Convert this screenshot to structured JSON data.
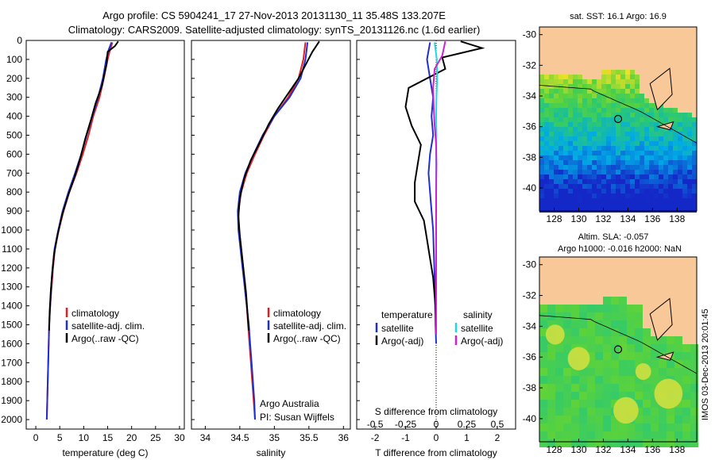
{
  "header": {
    "line1": "Argo profile: CS 5904241_17 27-Nov-2013 20131130_11 35.48S 133.207E",
    "line2": "Climatology: CARS2009. Satellite-adjusted climatology: synTS_20131126.nc (1.6d earlier)"
  },
  "chart_data": [
    {
      "type": "line",
      "xlabel": "temperature (deg C)",
      "ylabel": "",
      "xlim": [
        -2,
        31
      ],
      "ylim": [
        2050,
        0
      ],
      "xticks": [
        0,
        5,
        10,
        15,
        20,
        25,
        30
      ],
      "yticks": [
        0,
        100,
        200,
        300,
        400,
        500,
        600,
        700,
        800,
        900,
        1000,
        1100,
        1200,
        1300,
        1400,
        1500,
        1600,
        1700,
        1800,
        1900,
        2000
      ],
      "legend": [
        "climatology",
        "satellite-adj. clim.",
        "Argo(..raw -QC)"
      ],
      "legend_position": "lower-middle",
      "series": [
        {
          "name": "climatology",
          "color": "#e02020",
          "points": [
            [
              16.0,
              10
            ],
            [
              15.5,
              50
            ],
            [
              15.0,
              100
            ],
            [
              14.2,
              200
            ],
            [
              13.3,
              300
            ],
            [
              12.0,
              400
            ],
            [
              11.0,
              500
            ],
            [
              9.8,
              600
            ],
            [
              8.5,
              700
            ],
            [
              7.0,
              800
            ],
            [
              5.8,
              900
            ],
            [
              4.8,
              1000
            ],
            [
              4.0,
              1100
            ],
            [
              3.6,
              1200
            ],
            [
              3.3,
              1300
            ],
            [
              3.0,
              1400
            ],
            [
              2.8,
              1500
            ],
            [
              2.7,
              1600
            ],
            [
              2.6,
              1700
            ],
            [
              2.5,
              1800
            ],
            [
              2.4,
              1900
            ],
            [
              2.3,
              2000
            ]
          ]
        },
        {
          "name": "satellite-adj. clim.",
          "color": "#2030d0",
          "points": [
            [
              15.8,
              10
            ],
            [
              15.2,
              50
            ],
            [
              14.7,
              100
            ],
            [
              14.0,
              200
            ],
            [
              13.0,
              300
            ],
            [
              11.8,
              400
            ],
            [
              10.6,
              500
            ],
            [
              9.5,
              600
            ],
            [
              8.2,
              700
            ],
            [
              6.8,
              800
            ],
            [
              5.6,
              900
            ],
            [
              4.7,
              1000
            ],
            [
              3.9,
              1100
            ],
            [
              3.5,
              1200
            ],
            [
              3.2,
              1300
            ],
            [
              3.0,
              1400
            ],
            [
              2.8,
              1500
            ],
            [
              2.7,
              1600
            ],
            [
              2.6,
              1700
            ],
            [
              2.5,
              1800
            ],
            [
              2.4,
              1900
            ],
            [
              2.3,
              2000
            ]
          ]
        },
        {
          "name": "Argo(..raw -QC)",
          "color": "#000000",
          "points": [
            [
              17.2,
              5
            ],
            [
              16.5,
              30
            ],
            [
              15.0,
              60
            ],
            [
              14.8,
              120
            ],
            [
              14.3,
              180
            ],
            [
              13.8,
              240
            ],
            [
              12.5,
              330
            ],
            [
              11.5,
              420
            ],
            [
              10.3,
              520
            ],
            [
              9.3,
              620
            ],
            [
              8.1,
              720
            ],
            [
              6.7,
              820
            ],
            [
              5.5,
              920
            ],
            [
              4.5,
              1030
            ],
            [
              3.8,
              1130
            ],
            [
              3.4,
              1230
            ],
            [
              3.1,
              1330
            ],
            [
              2.9,
              1430
            ],
            [
              2.8,
              1530
            ]
          ]
        }
      ]
    },
    {
      "type": "line",
      "xlabel": "salinity",
      "ylabel": "",
      "xlim": [
        33.8,
        36.1
      ],
      "ylim": [
        2050,
        0
      ],
      "xticks": [
        34,
        34.5,
        35,
        35.5,
        36
      ],
      "legend": [
        "climatology",
        "satellite-adj. clim.",
        "Argo(..raw -QC)"
      ],
      "legend_position": "lower-middle",
      "annotations": [
        "Argo Australia",
        "PI: Susan Wijffels"
      ],
      "series": [
        {
          "name": "climatology",
          "color": "#e02020",
          "points": [
            [
              35.45,
              10
            ],
            [
              35.42,
              100
            ],
            [
              35.35,
              200
            ],
            [
              35.2,
              300
            ],
            [
              35.0,
              400
            ],
            [
              34.85,
              500
            ],
            [
              34.72,
              600
            ],
            [
              34.6,
              700
            ],
            [
              34.52,
              800
            ],
            [
              34.48,
              900
            ],
            [
              34.49,
              1000
            ],
            [
              34.52,
              1100
            ],
            [
              34.55,
              1200
            ],
            [
              34.57,
              1300
            ],
            [
              34.6,
              1400
            ],
            [
              34.62,
              1500
            ],
            [
              34.64,
              1600
            ],
            [
              34.66,
              1700
            ],
            [
              34.68,
              1800
            ],
            [
              34.7,
              1900
            ],
            [
              34.72,
              2000
            ]
          ]
        },
        {
          "name": "satellite-adj. clim.",
          "color": "#2030d0",
          "points": [
            [
              35.48,
              10
            ],
            [
              35.45,
              100
            ],
            [
              35.38,
              200
            ],
            [
              35.22,
              300
            ],
            [
              35.0,
              400
            ],
            [
              34.83,
              500
            ],
            [
              34.7,
              600
            ],
            [
              34.58,
              700
            ],
            [
              34.5,
              800
            ],
            [
              34.47,
              900
            ],
            [
              34.48,
              1000
            ],
            [
              34.51,
              1100
            ],
            [
              34.54,
              1200
            ],
            [
              34.57,
              1300
            ],
            [
              34.6,
              1400
            ],
            [
              34.63,
              1500
            ],
            [
              34.65,
              1600
            ],
            [
              34.67,
              1700
            ],
            [
              34.69,
              1800
            ],
            [
              34.71,
              1900
            ],
            [
              34.72,
              2000
            ]
          ]
        },
        {
          "name": "Argo(..raw -QC)",
          "color": "#000000",
          "points": [
            [
              35.65,
              5
            ],
            [
              35.55,
              60
            ],
            [
              35.45,
              130
            ],
            [
              35.35,
              200
            ],
            [
              35.2,
              280
            ],
            [
              35.05,
              360
            ],
            [
              34.92,
              440
            ],
            [
              34.8,
              530
            ],
            [
              34.66,
              630
            ],
            [
              34.56,
              730
            ],
            [
              34.5,
              830
            ],
            [
              34.48,
              930
            ],
            [
              34.5,
              1030
            ],
            [
              34.53,
              1130
            ],
            [
              34.56,
              1230
            ],
            [
              34.59,
              1330
            ],
            [
              34.61,
              1430
            ],
            [
              34.63,
              1530
            ]
          ]
        }
      ]
    },
    {
      "type": "line",
      "xlabel": "T difference from climatology",
      "xlabel_top": "S difference from climatology",
      "ylabel": "",
      "xlim": [
        -2.6,
        2.6
      ],
      "ylim": [
        2050,
        0
      ],
      "xticks": [
        -2,
        -1,
        0,
        1,
        2
      ],
      "xticks_s": [
        "-0.5",
        "-0.25",
        "0",
        "0.25",
        "0.5"
      ],
      "legend_temperature_title": "temperature",
      "legend_salinity_title": "salinity",
      "legend": [
        "satellite",
        "Argo(-adj)",
        "satellite",
        "Argo(-adj)"
      ],
      "legend_position": "lower-middle",
      "series": [
        {
          "name": "T satellite",
          "color": "#2030d0",
          "points": [
            [
              -0.2,
              10
            ],
            [
              -0.3,
              100
            ],
            [
              -0.2,
              200
            ],
            [
              -0.1,
              300
            ],
            [
              -0.15,
              400
            ],
            [
              -0.1,
              500
            ],
            [
              -0.2,
              600
            ],
            [
              -0.25,
              700
            ],
            [
              -0.2,
              800
            ],
            [
              -0.15,
              900
            ],
            [
              -0.1,
              1000
            ],
            [
              -0.08,
              1100
            ],
            [
              -0.06,
              1200
            ],
            [
              -0.04,
              1300
            ],
            [
              -0.03,
              1400
            ],
            [
              -0.02,
              1500
            ],
            [
              0,
              1600
            ]
          ]
        },
        {
          "name": "T Argo(-adj)",
          "color": "#000000",
          "points": [
            [
              0.8,
              5
            ],
            [
              1.5,
              40
            ],
            [
              0.2,
              90
            ],
            [
              0.3,
              150
            ],
            [
              -0.9,
              250
            ],
            [
              -1.0,
              350
            ],
            [
              -0.8,
              450
            ],
            [
              -0.5,
              550
            ],
            [
              -0.6,
              650
            ],
            [
              -0.7,
              750
            ],
            [
              -0.7,
              850
            ],
            [
              -0.4,
              950
            ],
            [
              -0.3,
              1050
            ],
            [
              -0.2,
              1150
            ],
            [
              -0.1,
              1250
            ],
            [
              -0.05,
              1350
            ],
            [
              0,
              1450
            ],
            [
              0,
              1550
            ]
          ]
        },
        {
          "name": "S satellite",
          "color": "#20d8e0",
          "points": [
            [
              -0.05,
              10
            ],
            [
              0.02,
              100
            ],
            [
              0.03,
              200
            ],
            [
              0.01,
              300
            ],
            [
              0.0,
              400
            ],
            [
              0.01,
              500
            ],
            [
              0.0,
              600
            ],
            [
              0.0,
              800
            ],
            [
              0.0,
              1000
            ],
            [
              0.0,
              1200
            ],
            [
              0.0,
              1400
            ],
            [
              0.0,
              1550
            ]
          ]
        },
        {
          "name": "S Argo(-adj)",
          "color": "#d020d0",
          "points": [
            [
              0.3,
              5
            ],
            [
              0.2,
              80
            ],
            [
              -0.05,
              150
            ],
            [
              -0.1,
              250
            ],
            [
              -0.08,
              350
            ],
            [
              -0.05,
              450
            ],
            [
              0.0,
              550
            ],
            [
              0.01,
              650
            ],
            [
              0.0,
              800
            ],
            [
              0.0,
              1000
            ],
            [
              0.0,
              1200
            ],
            [
              0.0,
              1400
            ],
            [
              0.0,
              1550
            ]
          ]
        }
      ]
    },
    {
      "type": "heatmap",
      "title": "sat. SST: 16.1 Argo: 16.9",
      "xticks": [
        "128",
        "130",
        "132",
        "134",
        "136",
        "138"
      ],
      "yticks": [
        "-30",
        "-32",
        "-34",
        "-36",
        "-38",
        "-40"
      ],
      "marker": [
        133.2,
        -35.5
      ]
    },
    {
      "type": "heatmap",
      "title_line1": "Altim. SLA: -0.057",
      "title_line2": "Argo h1000: -0.016 h2000: NaN",
      "xticks": [
        "128",
        "130",
        "132",
        "134",
        "136",
        "138"
      ],
      "yticks": [
        "-30",
        "-32",
        "-34",
        "-36",
        "-38",
        "-40"
      ],
      "marker": [
        133.2,
        -35.5
      ]
    }
  ],
  "side_stamp": "IMOS 03-Dec-2013 20:01:45",
  "colors": {
    "land": "#f8c898",
    "climatology": "#e02020",
    "satellite": "#2030d0",
    "argo": "#000000",
    "s_satellite": "#20d8e0",
    "s_argo": "#d020d0"
  }
}
